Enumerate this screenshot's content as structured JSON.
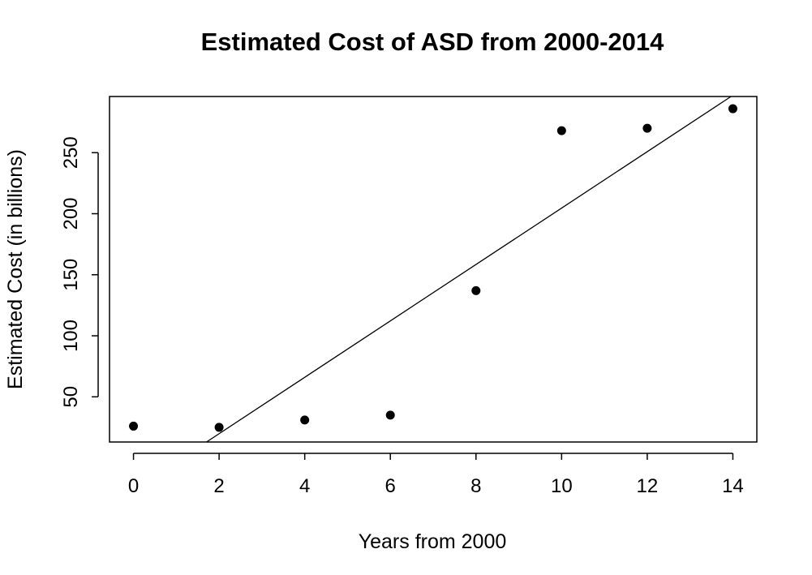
{
  "chart_data": {
    "type": "scatter",
    "title": "Estimated Cost of ASD from 2000-2014",
    "xlabel": "Years from 2000",
    "ylabel": "Estimated Cost (in billions)",
    "xlim": [
      -0.56,
      14.56
    ],
    "ylim": [
      13,
      296
    ],
    "x_ticks": [
      0,
      2,
      4,
      6,
      8,
      10,
      12,
      14
    ],
    "y_ticks": [
      50,
      100,
      150,
      200,
      250
    ],
    "grid": false,
    "legend": "none",
    "points": {
      "x": [
        0,
        2,
        4,
        6,
        8,
        10,
        12,
        14
      ],
      "y": [
        26,
        25,
        31,
        35,
        137,
        268,
        270,
        286
      ]
    },
    "fit_line": {
      "type": "linear",
      "intercept": -26.4,
      "slope": 23.1
    },
    "colors": {
      "points": "#000000",
      "line": "#000000",
      "axes": "#000000"
    }
  }
}
